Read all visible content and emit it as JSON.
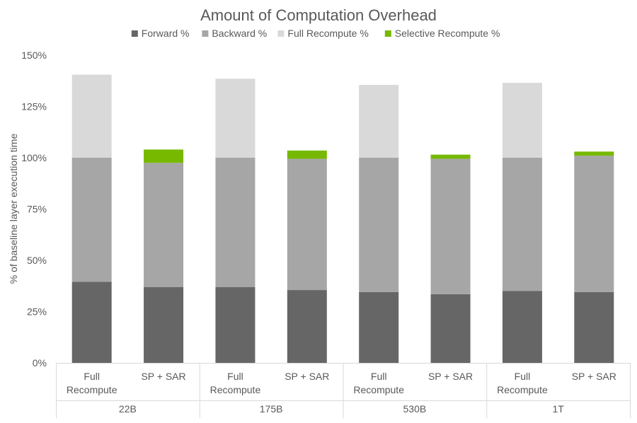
{
  "chart_data": {
    "type": "bar",
    "stacked": true,
    "title": "Amount of Computation Overhead",
    "ylabel": "% of baseline layer execution time",
    "xlabel": "",
    "ylim": [
      0,
      150
    ],
    "yticks": [
      0,
      25,
      50,
      75,
      100,
      125,
      150
    ],
    "ytick_labels": [
      "0%",
      "25%",
      "50%",
      "75%",
      "100%",
      "125%",
      "150%"
    ],
    "legend_position": "top",
    "grid": false,
    "categories": [
      {
        "label_lines": [
          "Full",
          "Recompute"
        ],
        "group": "22B"
      },
      {
        "label_lines": [
          "SP + SAR"
        ],
        "group": "22B"
      },
      {
        "label_lines": [
          "Full",
          "Recompute"
        ],
        "group": "175B"
      },
      {
        "label_lines": [
          "SP + SAR"
        ],
        "group": "175B"
      },
      {
        "label_lines": [
          "Full",
          "Recompute"
        ],
        "group": "530B"
      },
      {
        "label_lines": [
          "SP + SAR"
        ],
        "group": "530B"
      },
      {
        "label_lines": [
          "Full",
          "Recompute"
        ],
        "group": "1T"
      },
      {
        "label_lines": [
          "SP + SAR"
        ],
        "group": "1T"
      }
    ],
    "groups": [
      "22B",
      "175B",
      "530B",
      "1T"
    ],
    "series": [
      {
        "name": "Forward %",
        "color": "#666666",
        "values": [
          39.5,
          37,
          37,
          35.5,
          34.5,
          33.5,
          35,
          34.5
        ]
      },
      {
        "name": "Backward %",
        "color": "#a6a6a6",
        "values": [
          60.5,
          60.5,
          63,
          64,
          65.5,
          66,
          65,
          66.5
        ]
      },
      {
        "name": "Full Recompute %",
        "color": "#d9d9d9",
        "values": [
          40.5,
          0,
          38.5,
          0,
          35.5,
          0,
          36.5,
          0
        ]
      },
      {
        "name": "Selective Recompute %",
        "color": "#76b900",
        "values": [
          0,
          6.5,
          0,
          4,
          0,
          2,
          0,
          2
        ]
      }
    ]
  }
}
